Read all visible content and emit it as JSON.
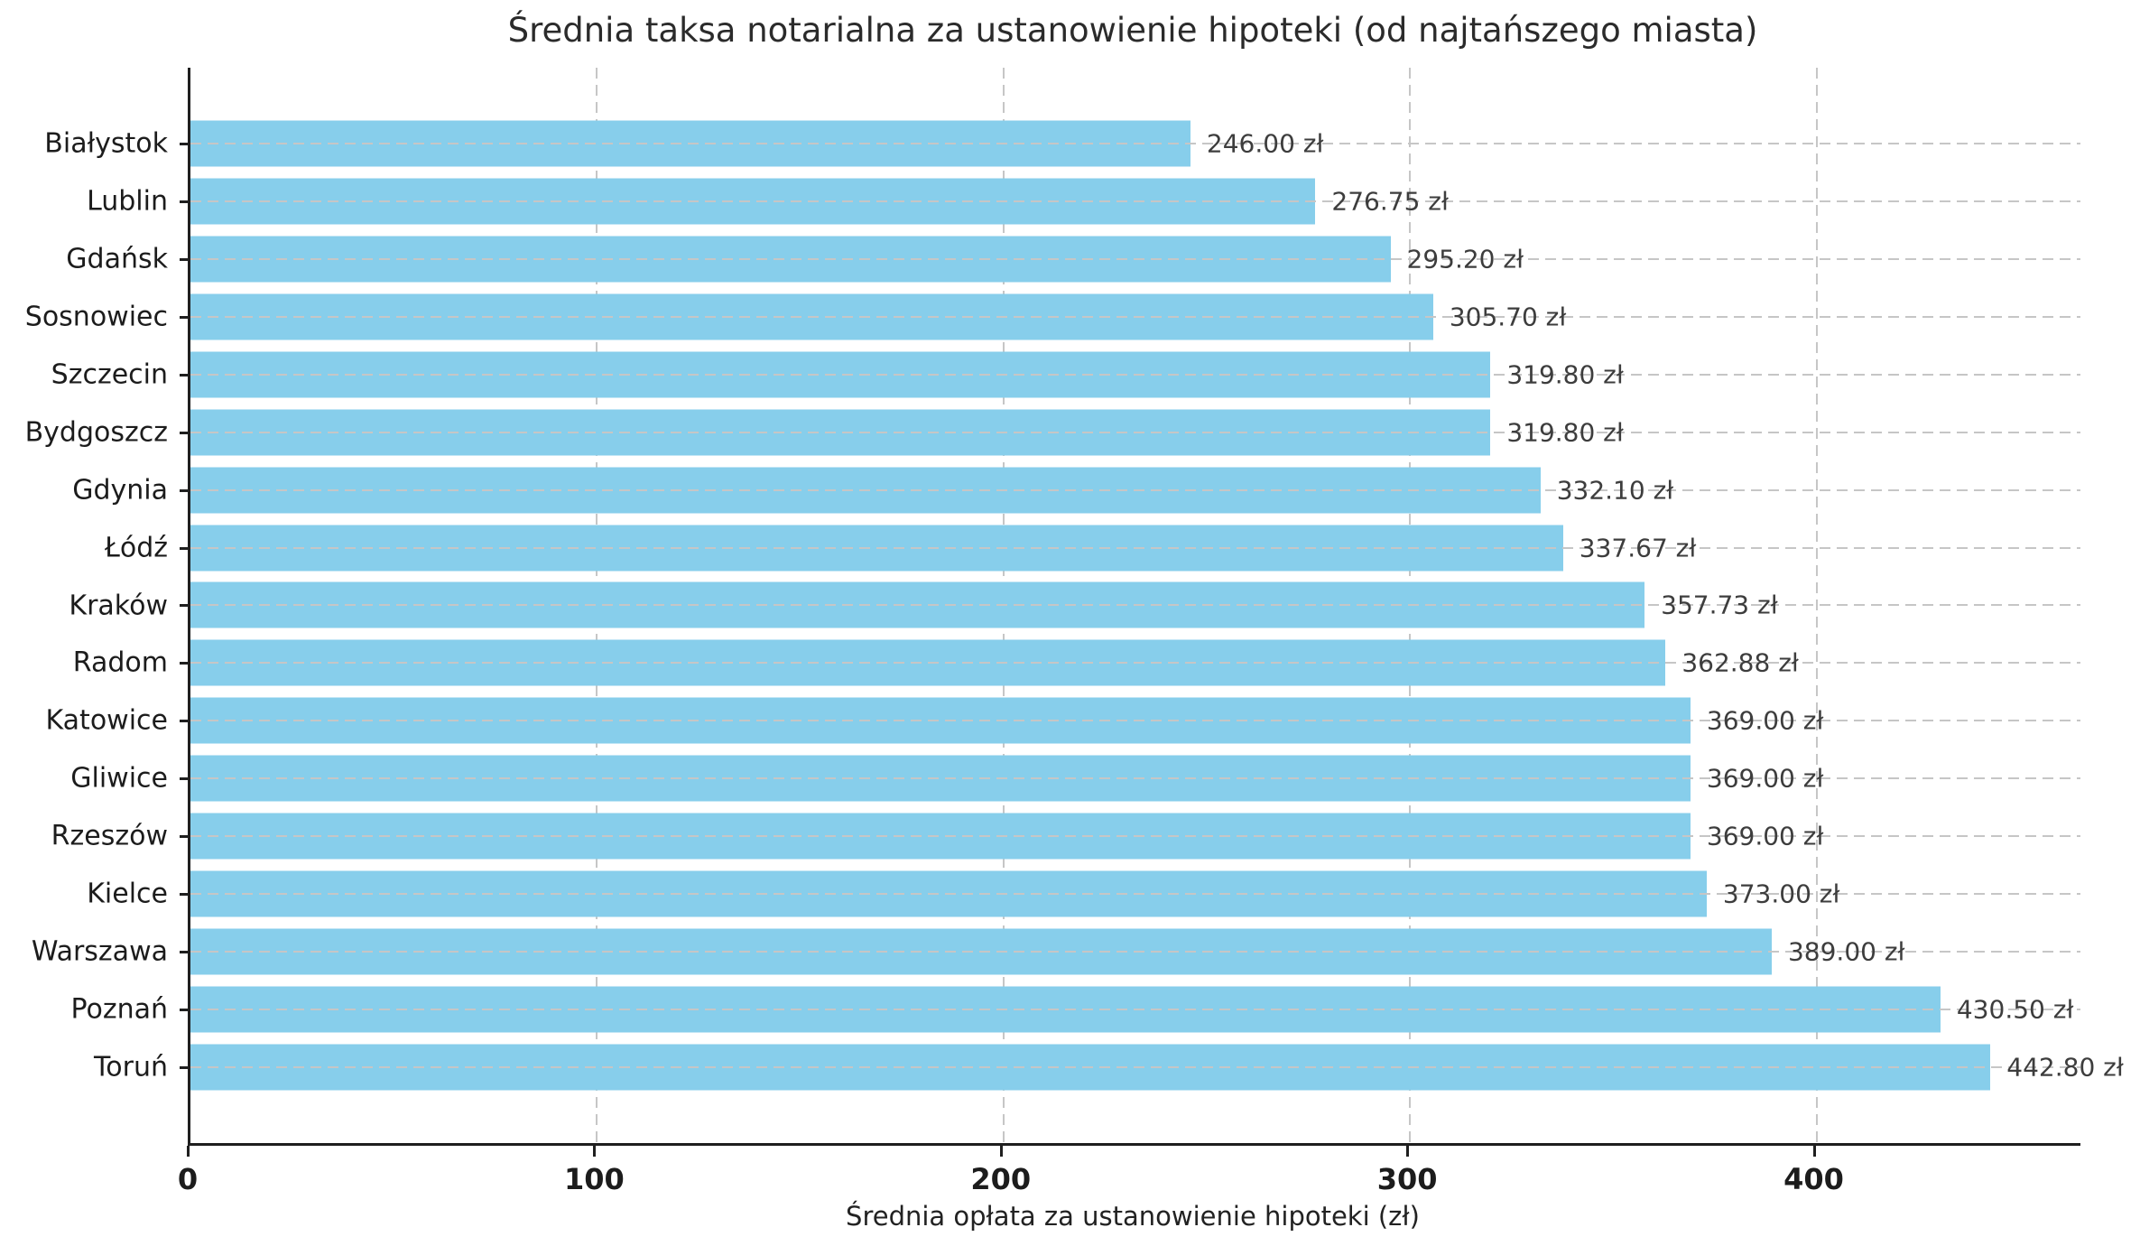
{
  "title": "Średnia taksa notarialna za ustanowienie hipoteki (od najtańszego miasta)",
  "xlabel": "Średnia opłata za ustanowienie hipoteki (zł)",
  "colors": {
    "bar": "#87CEEB",
    "grid": "#c6c6c6",
    "spine": "#1f1f1f",
    "value_text": "#3d3d3d",
    "tick_text": "#1c1c1c",
    "title_text": "#2b2b2b"
  },
  "x_axis": {
    "ticks": [
      "0",
      "100",
      "200",
      "300",
      "400"
    ],
    "tick_values": [
      0,
      100,
      200,
      300,
      400
    ],
    "max": 464.94
  },
  "chart_data": {
    "type": "bar",
    "orientation": "horizontal",
    "title": "Średnia taksa notarialna za ustanowienie hipoteki (od najtańszego miasta)",
    "xlabel": "Średnia opłata za ustanowienie hipoteki (zł)",
    "ylabel": "",
    "xlim": [
      0,
      464.94
    ],
    "grid": true,
    "legend": false,
    "categories": [
      "Białystok",
      "Lublin",
      "Gdańsk",
      "Sosnowiec",
      "Szczecin",
      "Bydgoszcz",
      "Gdynia",
      "Łódź",
      "Kraków",
      "Radom",
      "Katowice",
      "Gliwice",
      "Rzeszów",
      "Kielce",
      "Warszawa",
      "Poznań",
      "Toruń"
    ],
    "values": [
      246.0,
      276.75,
      295.2,
      305.7,
      319.8,
      319.8,
      332.1,
      337.67,
      357.73,
      362.88,
      369.0,
      369.0,
      369.0,
      373.0,
      389.0,
      430.5,
      442.8
    ],
    "value_labels": [
      "246.00 zł",
      "276.75 zł",
      "295.20 zł",
      "305.70 zł",
      "319.80 zł",
      "319.80 zł",
      "332.10 zł",
      "337.67 zł",
      "357.73 zł",
      "362.88 zł",
      "369.00 zł",
      "369.00 zł",
      "369.00 zł",
      "373.00 zł",
      "389.00 zł",
      "430.50 zł",
      "442.80 zł"
    ]
  }
}
